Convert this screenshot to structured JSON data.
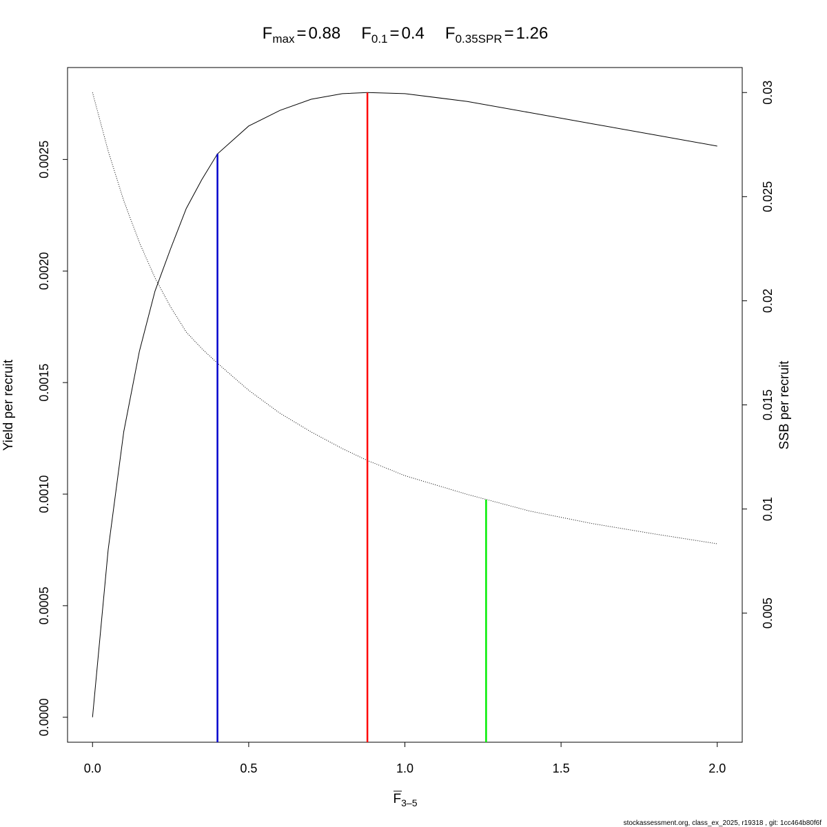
{
  "chart_data": {
    "type": "line",
    "reference_points": [
      {
        "label": "F",
        "sub": "max",
        "sign": "=",
        "x": 0.88,
        "y": 0.0028,
        "axis": "y",
        "color": "#ff0000"
      },
      {
        "label": "F",
        "sub": "0.1",
        "sign": "=",
        "x": 0.4,
        "y": 0.002525,
        "axis": "y",
        "color": "#0000cc"
      },
      {
        "label": "F",
        "sub": "0.35SPR",
        "sign": "=",
        "x": 1.26,
        "y": 0.01045,
        "axis": "y2",
        "color": "#00ee00"
      }
    ],
    "xlabel": {
      "label": "F",
      "sub": "3–5"
    },
    "ylabel": "Yield per recruit",
    "y2label": "SSB per recruit",
    "footer": "stockassessment.org, class_ex_2025, r19318 , git: 1cc464b80f6f",
    "x": [
      0,
      0.05,
      0.1,
      0.15,
      0.2,
      0.25,
      0.3,
      0.35,
      0.4,
      0.5,
      0.6,
      0.7,
      0.8,
      0.88,
      1.0,
      1.2,
      1.4,
      1.6,
      1.8,
      2.0
    ],
    "series": [
      {
        "color": "#000000",
        "dash": "solid",
        "axis": "y",
        "values": [
          0,
          0.00075,
          0.00128,
          0.00164,
          0.00191,
          0.0021,
          0.00228,
          0.00241,
          0.002525,
          0.00265,
          0.00272,
          0.00277,
          0.002795,
          0.0028,
          0.002795,
          0.00276,
          0.00271,
          0.00266,
          0.00261,
          0.00256
        ]
      },
      {
        "color": "#000000",
        "dash": "dotted",
        "axis": "y2",
        "values": [
          0.03,
          0.0272,
          0.0248,
          0.0228,
          0.0211,
          0.0197,
          0.0185,
          0.0177,
          0.017,
          0.0157,
          0.0146,
          0.0137,
          0.0129,
          0.01233,
          0.0116,
          0.0107,
          0.0099,
          0.0093,
          0.0088,
          0.00833
        ]
      }
    ],
    "xlim": [
      -0.08,
      2.08
    ],
    "xticks": [
      {
        "value": 0,
        "label": "0.0"
      },
      0.5,
      {
        "value": 1,
        "label": "1.0"
      },
      1.5,
      {
        "value": 2,
        "label": "2.0"
      }
    ],
    "ylim": [
      -0.000112,
      0.002912
    ],
    "yticks": [
      {
        "value": 0,
        "label": "0.0000"
      },
      {
        "value": 0.0005,
        "label": "0.0005"
      },
      {
        "value": 0.001,
        "label": "0.0010"
      },
      {
        "value": 0.0015,
        "label": "0.0015"
      },
      {
        "value": 0.002,
        "label": "0.0020"
      },
      {
        "value": 0.0025,
        "label": "0.0025"
      }
    ],
    "y2lim": [
      -0.0012,
      0.0312
    ],
    "y2ticks": [
      0.005,
      0.01,
      0.015,
      0.02,
      0.025,
      0.03
    ]
  }
}
